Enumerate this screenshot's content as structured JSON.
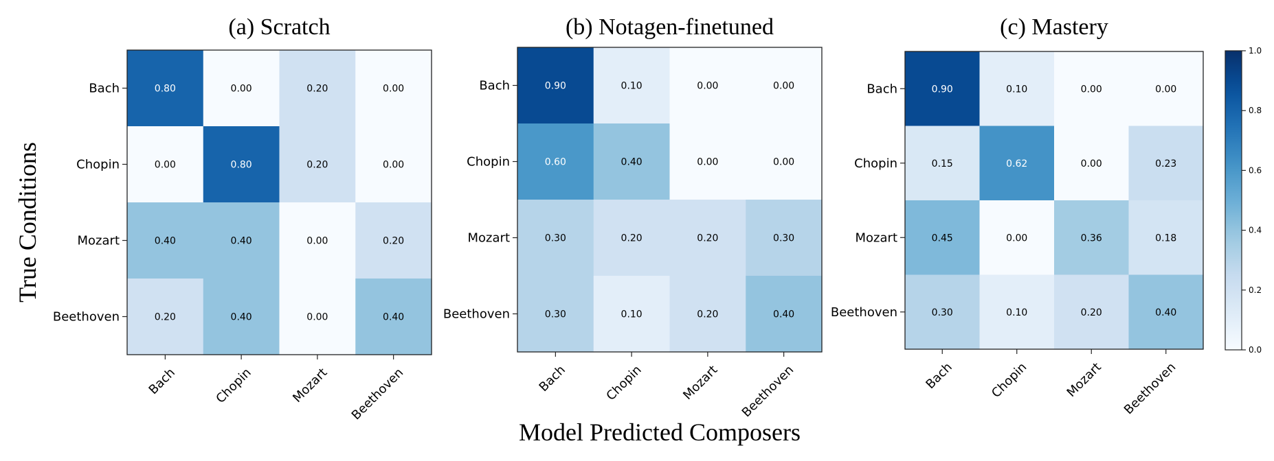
{
  "figure": {
    "ylabel": "True Conditions",
    "xlabel": "Model Predicted Composers"
  },
  "colorbar": {
    "ticks": [
      "0.0",
      "0.2",
      "0.4",
      "0.6",
      "0.8",
      "1.0"
    ],
    "range": [
      0,
      1
    ],
    "colormap": "Blues",
    "low_color": "#f7fbff",
    "high_color": "#08306b"
  },
  "chart_data": [
    {
      "type": "heatmap",
      "title": "(a) Scratch",
      "x_categories": [
        "Bach",
        "Chopin",
        "Mozart",
        "Beethoven"
      ],
      "y_categories": [
        "Bach",
        "Chopin",
        "Mozart",
        "Beethoven"
      ],
      "values": [
        [
          0.8,
          0.0,
          0.2,
          0.0
        ],
        [
          0.0,
          0.8,
          0.2,
          0.0
        ],
        [
          0.4,
          0.4,
          0.0,
          0.2
        ],
        [
          0.2,
          0.4,
          0.0,
          0.4
        ]
      ],
      "labels": [
        [
          "0.80",
          "0.00",
          "0.20",
          "0.00"
        ],
        [
          "0.00",
          "0.80",
          "0.20",
          "0.00"
        ],
        [
          "0.40",
          "0.40",
          "0.00",
          "0.20"
        ],
        [
          "0.20",
          "0.40",
          "0.00",
          "0.40"
        ]
      ]
    },
    {
      "type": "heatmap",
      "title": "(b) Notagen-finetuned",
      "x_categories": [
        "Bach",
        "Chopin",
        "Mozart",
        "Beethoven"
      ],
      "y_categories": [
        "Bach",
        "Chopin",
        "Mozart",
        "Beethoven"
      ],
      "values": [
        [
          0.9,
          0.1,
          0.0,
          0.0
        ],
        [
          0.6,
          0.4,
          0.0,
          0.0
        ],
        [
          0.3,
          0.2,
          0.2,
          0.3
        ],
        [
          0.3,
          0.1,
          0.2,
          0.4
        ]
      ],
      "labels": [
        [
          "0.90",
          "0.10",
          "0.00",
          "0.00"
        ],
        [
          "0.60",
          "0.40",
          "0.00",
          "0.00"
        ],
        [
          "0.30",
          "0.20",
          "0.20",
          "0.30"
        ],
        [
          "0.30",
          "0.10",
          "0.20",
          "0.40"
        ]
      ]
    },
    {
      "type": "heatmap",
      "title": "(c) Mastery",
      "x_categories": [
        "Bach",
        "Chopin",
        "Mozart",
        "Beethoven"
      ],
      "y_categories": [
        "Bach",
        "Chopin",
        "Mozart",
        "Beethoven"
      ],
      "values": [
        [
          0.9,
          0.1,
          0.0,
          0.0
        ],
        [
          0.15,
          0.62,
          0.0,
          0.23
        ],
        [
          0.45,
          0.0,
          0.36,
          0.18
        ],
        [
          0.3,
          0.1,
          0.2,
          0.4
        ]
      ],
      "labels": [
        [
          "0.90",
          "0.10",
          "0.00",
          "0.00"
        ],
        [
          "0.15",
          "0.62",
          "0.00",
          "0.23"
        ],
        [
          "0.45",
          "0.00",
          "0.36",
          "0.18"
        ],
        [
          "0.30",
          "0.10",
          "0.20",
          "0.40"
        ]
      ]
    }
  ]
}
